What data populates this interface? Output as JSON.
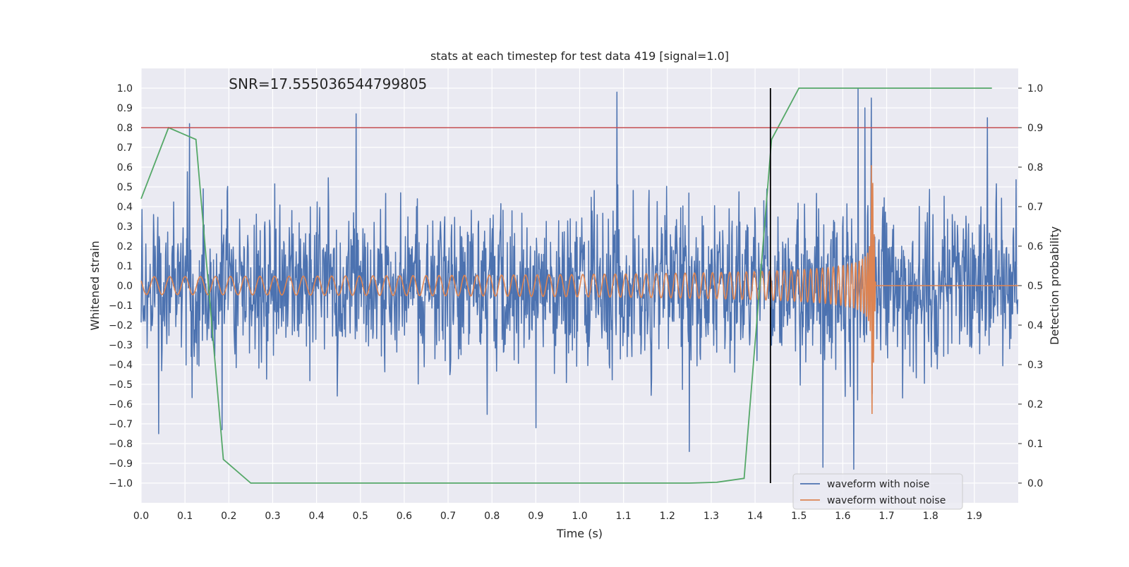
{
  "chart_data": {
    "type": "line",
    "title": "stats at each timestep for test data 419 [signal=1.0]",
    "xlabel": "Time (s)",
    "ylabel": "Whitened strain",
    "ylabel_right": "Detection probability",
    "annotation": "SNR=17.555036544799805",
    "xlim": [
      0.0,
      2.0
    ],
    "ylim": [
      -1.1,
      1.1
    ],
    "ylim_right": [
      -0.05,
      1.05
    ],
    "x_ticks": [
      "0.0",
      "0.1",
      "0.2",
      "0.3",
      "0.4",
      "0.5",
      "0.6",
      "0.7",
      "0.8",
      "0.9",
      "1.0",
      "1.1",
      "1.2",
      "1.3",
      "1.4",
      "1.5",
      "1.6",
      "1.7",
      "1.8",
      "1.9"
    ],
    "y_ticks": [
      "1.0",
      "0.9",
      "0.8",
      "0.7",
      "0.6",
      "0.5",
      "0.4",
      "0.3",
      "0.2",
      "0.1",
      "0.0",
      "−0.1",
      "−0.2",
      "−0.3",
      "−0.4",
      "−0.5",
      "−0.6",
      "−0.7",
      "−0.8",
      "−0.9",
      "−1.0"
    ],
    "y_ticks_right": [
      "1.0",
      "0.9",
      "0.8",
      "0.7",
      "0.6",
      "0.5",
      "0.4",
      "0.3",
      "0.2",
      "0.1",
      "0.0"
    ],
    "grid": true,
    "legend_position": "lower-right",
    "threshold_y_right": 0.9,
    "marker_x": 1.435,
    "series": [
      {
        "name": "waveform with noise",
        "color": "#4c72b0",
        "axis": "left",
        "kind": "noise",
        "n_samples": 2048,
        "sigma": 0.22,
        "seed": 419,
        "visible_peaks": [
          [
            0.11,
            0.82
          ],
          [
            0.49,
            0.87
          ],
          [
            1.085,
            0.98
          ],
          [
            1.635,
            1.0
          ],
          [
            1.65,
            0.9
          ],
          [
            1.93,
            0.85
          ],
          [
            0.04,
            -0.75
          ],
          [
            0.185,
            -0.73
          ],
          [
            0.9,
            -0.72
          ],
          [
            1.25,
            -0.84
          ],
          [
            1.555,
            -0.92
          ],
          [
            1.625,
            -0.93
          ]
        ]
      },
      {
        "name": "waveform without noise",
        "color": "#dd8452",
        "axis": "left",
        "kind": "chirp",
        "t_merger": 1.665,
        "f0": 28,
        "f_end": 300,
        "amp0": 0.045,
        "amp_peak": 0.78,
        "ringdown_end": 1.675
      },
      {
        "name": "detection probability",
        "color": "#55a868",
        "axis": "right",
        "x": [
          0.0,
          0.0625,
          0.125,
          0.1875,
          0.25,
          0.3125,
          0.375,
          0.4375,
          0.5,
          0.5625,
          0.625,
          0.6875,
          0.75,
          0.8125,
          0.875,
          0.9375,
          1.0,
          1.0625,
          1.125,
          1.1875,
          1.25,
          1.3125,
          1.375,
          1.4375,
          1.5,
          1.5625,
          1.625,
          1.6875,
          1.75,
          1.8125,
          1.875,
          1.94
        ],
        "y": [
          0.72,
          0.9,
          0.87,
          0.06,
          0.0,
          0.0,
          0.0,
          0.0,
          0.0,
          0.0,
          0.0,
          0.0,
          0.0,
          0.0,
          0.0,
          0.0,
          0.0,
          0.0,
          0.0,
          0.0,
          0.0,
          0.002,
          0.012,
          0.87,
          1.0,
          1.0,
          1.0,
          1.0,
          1.0,
          1.0,
          1.0,
          1.0
        ]
      }
    ]
  },
  "colors": {
    "plot_bg": "#eaeaf2",
    "grid": "#ffffff",
    "threshold": "#c44e52",
    "marker": "#000000",
    "text": "#262626"
  }
}
